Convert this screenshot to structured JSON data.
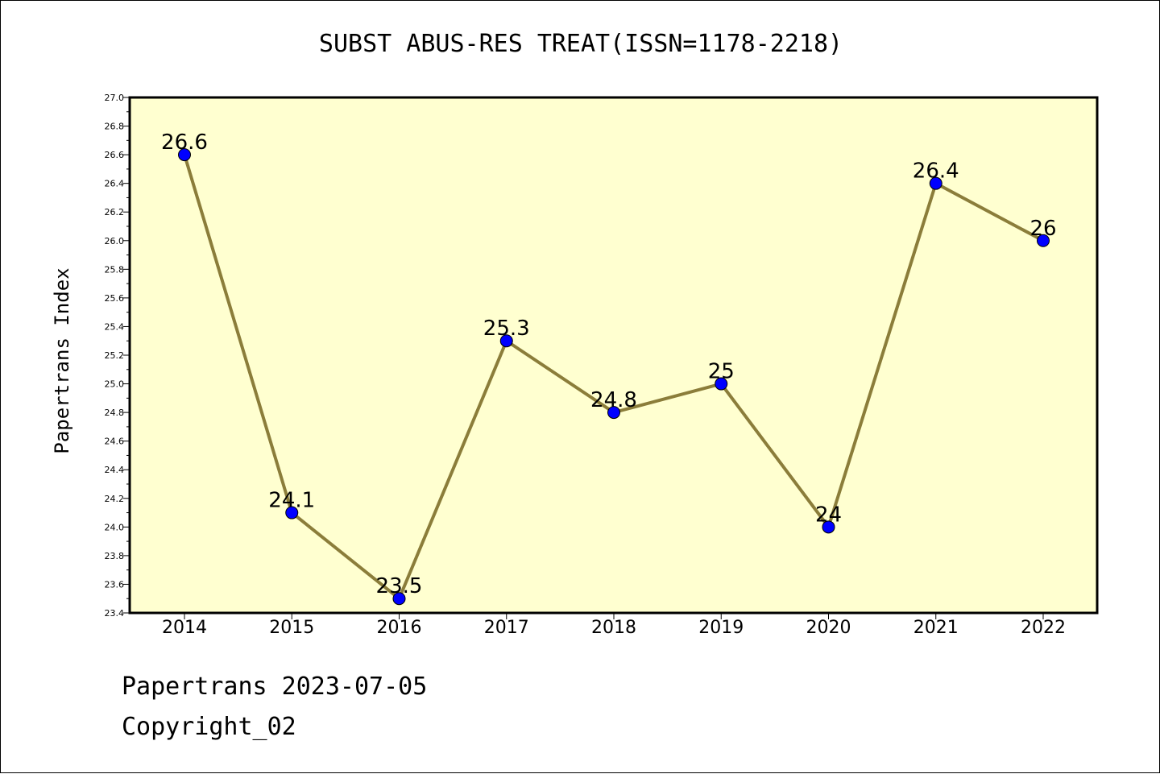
{
  "chart_data": {
    "type": "line",
    "title": "SUBST ABUS-RES TREAT(ISSN=1178-2218)",
    "xlabel": "",
    "ylabel": "Papertrans Index",
    "categories": [
      "2014",
      "2015",
      "2016",
      "2017",
      "2018",
      "2019",
      "2020",
      "2021",
      "2022"
    ],
    "values": [
      26.6,
      24.1,
      23.5,
      25.3,
      24.8,
      25.0,
      24.0,
      26.4,
      26.0
    ],
    "data_labels": [
      "26.6",
      "24.1",
      "23.5",
      "25.3",
      "24.8",
      "25",
      "24",
      "26.4",
      "26"
    ],
    "ylim": [
      23.4,
      27.0
    ],
    "yticks": [
      "23.4",
      "23.6",
      "23.8",
      "24.0",
      "24.2",
      "24.4",
      "24.6",
      "24.8",
      "25.0",
      "25.2",
      "25.4",
      "25.6",
      "25.8",
      "26.0",
      "26.2",
      "26.4",
      "26.6",
      "26.8",
      "27.0"
    ],
    "grid": false,
    "legend": "none",
    "colors": {
      "plot_background": "#ffffd0",
      "line": "#8b7d3a",
      "marker": "#0000ff",
      "axis": "#000000"
    }
  },
  "footer": {
    "line1": "Papertrans 2023-07-05",
    "line2": "Copyright_02"
  }
}
